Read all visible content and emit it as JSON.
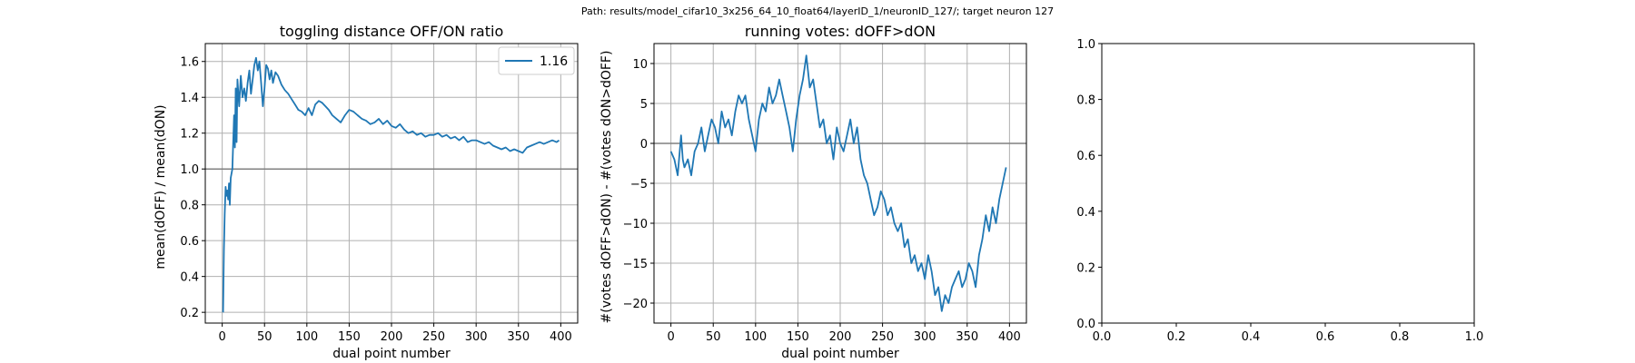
{
  "suptitle": "Path: results/model_cifar10_3x256_64_10_float64/layerID_1/neuronID_127/; target neuron 127",
  "colors": {
    "line": "#1f77b4",
    "refline": "#808080",
    "grid": "#b0b0b0",
    "axis": "#000000"
  },
  "chart_data": [
    {
      "type": "line",
      "title": "toggling distance OFF/ON ratio",
      "xlabel": "dual point number",
      "ylabel": "mean(dOFF) / mean(dON)",
      "xlim": [
        -20,
        420
      ],
      "ylim": [
        0.14,
        1.7
      ],
      "xticks": [
        0,
        50,
        100,
        150,
        200,
        250,
        300,
        350,
        400
      ],
      "yticks": [
        0.2,
        0.4,
        0.6,
        0.8,
        1.0,
        1.2,
        1.4,
        1.6
      ],
      "ytick_labels": [
        "0.2",
        "0.4",
        "0.6",
        "0.8",
        "1.0",
        "1.2",
        "1.4",
        "1.6"
      ],
      "grid": true,
      "hline": 1.0,
      "legend": {
        "position": "top-right",
        "entries": [
          "1.16"
        ]
      },
      "series": [
        {
          "name": "1.16",
          "x": [
            1,
            2,
            3,
            4,
            5,
            6,
            7,
            8,
            9,
            10,
            12,
            14,
            15,
            16,
            17,
            18,
            20,
            22,
            24,
            26,
            28,
            30,
            32,
            34,
            36,
            38,
            40,
            42,
            44,
            46,
            48,
            50,
            52,
            54,
            56,
            58,
            60,
            63,
            66,
            70,
            74,
            78,
            82,
            86,
            90,
            94,
            98,
            102,
            106,
            110,
            114,
            118,
            122,
            126,
            130,
            135,
            140,
            145,
            150,
            155,
            160,
            165,
            170,
            175,
            180,
            185,
            190,
            195,
            200,
            205,
            210,
            215,
            220,
            225,
            230,
            235,
            240,
            245,
            250,
            255,
            260,
            265,
            270,
            275,
            280,
            285,
            290,
            295,
            300,
            305,
            310,
            315,
            320,
            325,
            330,
            335,
            340,
            345,
            350,
            355,
            360,
            365,
            370,
            375,
            380,
            385,
            390,
            395,
            398
          ],
          "values": [
            0.2,
            0.55,
            0.75,
            0.9,
            0.85,
            0.88,
            0.83,
            0.92,
            0.8,
            0.95,
            1.0,
            1.3,
            1.12,
            1.45,
            1.15,
            1.5,
            1.35,
            1.52,
            1.4,
            1.45,
            1.38,
            1.48,
            1.55,
            1.42,
            1.5,
            1.58,
            1.62,
            1.55,
            1.6,
            1.48,
            1.35,
            1.45,
            1.58,
            1.56,
            1.5,
            1.55,
            1.48,
            1.54,
            1.52,
            1.47,
            1.44,
            1.42,
            1.39,
            1.36,
            1.33,
            1.32,
            1.3,
            1.34,
            1.3,
            1.36,
            1.38,
            1.37,
            1.35,
            1.33,
            1.3,
            1.28,
            1.26,
            1.3,
            1.33,
            1.32,
            1.3,
            1.28,
            1.27,
            1.25,
            1.26,
            1.28,
            1.25,
            1.27,
            1.24,
            1.23,
            1.25,
            1.22,
            1.2,
            1.21,
            1.19,
            1.2,
            1.18,
            1.19,
            1.19,
            1.2,
            1.18,
            1.19,
            1.17,
            1.18,
            1.16,
            1.18,
            1.15,
            1.16,
            1.16,
            1.15,
            1.14,
            1.15,
            1.13,
            1.12,
            1.11,
            1.12,
            1.1,
            1.11,
            1.1,
            1.09,
            1.12,
            1.13,
            1.14,
            1.15,
            1.14,
            1.15,
            1.16,
            1.15,
            1.16
          ]
        }
      ]
    },
    {
      "type": "line",
      "title": "running votes: dOFF>dON",
      "xlabel": "dual point number",
      "ylabel": "#(votes dOFF>dON) - #(votes dON>dOFF)",
      "xlim": [
        -20,
        420
      ],
      "ylim": [
        -22.5,
        12.5
      ],
      "xticks": [
        0,
        50,
        100,
        150,
        200,
        250,
        300,
        350,
        400
      ],
      "yticks": [
        -20,
        -15,
        -10,
        -5,
        0,
        5,
        10
      ],
      "ytick_labels": [
        "−20",
        "−15",
        "−10",
        "−5",
        "0",
        "5",
        "10"
      ],
      "grid": true,
      "hline": 0,
      "series": [
        {
          "x": [
            0,
            4,
            8,
            12,
            14,
            16,
            20,
            24,
            28,
            32,
            36,
            40,
            44,
            48,
            52,
            56,
            60,
            64,
            68,
            72,
            76,
            80,
            84,
            88,
            92,
            96,
            100,
            104,
            108,
            112,
            116,
            120,
            124,
            128,
            132,
            136,
            140,
            144,
            148,
            152,
            156,
            160,
            164,
            168,
            172,
            176,
            180,
            184,
            188,
            192,
            196,
            200,
            204,
            208,
            212,
            216,
            220,
            224,
            228,
            232,
            236,
            240,
            244,
            248,
            252,
            256,
            260,
            264,
            268,
            272,
            276,
            280,
            284,
            288,
            292,
            296,
            300,
            304,
            308,
            312,
            316,
            320,
            324,
            328,
            332,
            336,
            340,
            344,
            348,
            352,
            356,
            360,
            364,
            368,
            372,
            376,
            380,
            384,
            388,
            392,
            396
          ],
          "values": [
            -1,
            -2,
            -4,
            1,
            -2,
            -3,
            -2,
            -4,
            -1,
            0,
            2,
            -1,
            1,
            3,
            2,
            0,
            4,
            2,
            3,
            1,
            4,
            6,
            5,
            6,
            3,
            1,
            -1,
            3,
            5,
            4,
            7,
            5,
            6,
            8,
            6,
            4,
            2,
            -1,
            3,
            6,
            8,
            11,
            7,
            8,
            5,
            2,
            3,
            0,
            1,
            -2,
            2,
            0,
            -1,
            1,
            3,
            0,
            2,
            -2,
            -4,
            -5,
            -7,
            -9,
            -8,
            -6,
            -7,
            -9,
            -8,
            -10,
            -11,
            -10,
            -13,
            -12,
            -15,
            -14,
            -16,
            -15,
            -17,
            -14,
            -16,
            -19,
            -18,
            -21,
            -19,
            -20,
            -18,
            -17,
            -16,
            -18,
            -17,
            -15,
            -16,
            -18,
            -14,
            -12,
            -9,
            -11,
            -8,
            -10,
            -7,
            -5,
            -3
          ]
        }
      ]
    },
    {
      "type": "line",
      "title": "",
      "xlim": [
        0,
        1
      ],
      "ylim": [
        0,
        1
      ],
      "xticks": [
        0,
        0.2,
        0.4,
        0.6,
        0.8,
        1.0
      ],
      "yticks": [
        0,
        0.2,
        0.4,
        0.6,
        0.8,
        1.0
      ],
      "xtick_labels": [
        "0.0",
        "0.2",
        "0.4",
        "0.6",
        "0.8",
        "1.0"
      ],
      "ytick_labels": [
        "0.0",
        "0.2",
        "0.4",
        "0.6",
        "0.8",
        "1.0"
      ],
      "grid": false,
      "series": []
    }
  ]
}
